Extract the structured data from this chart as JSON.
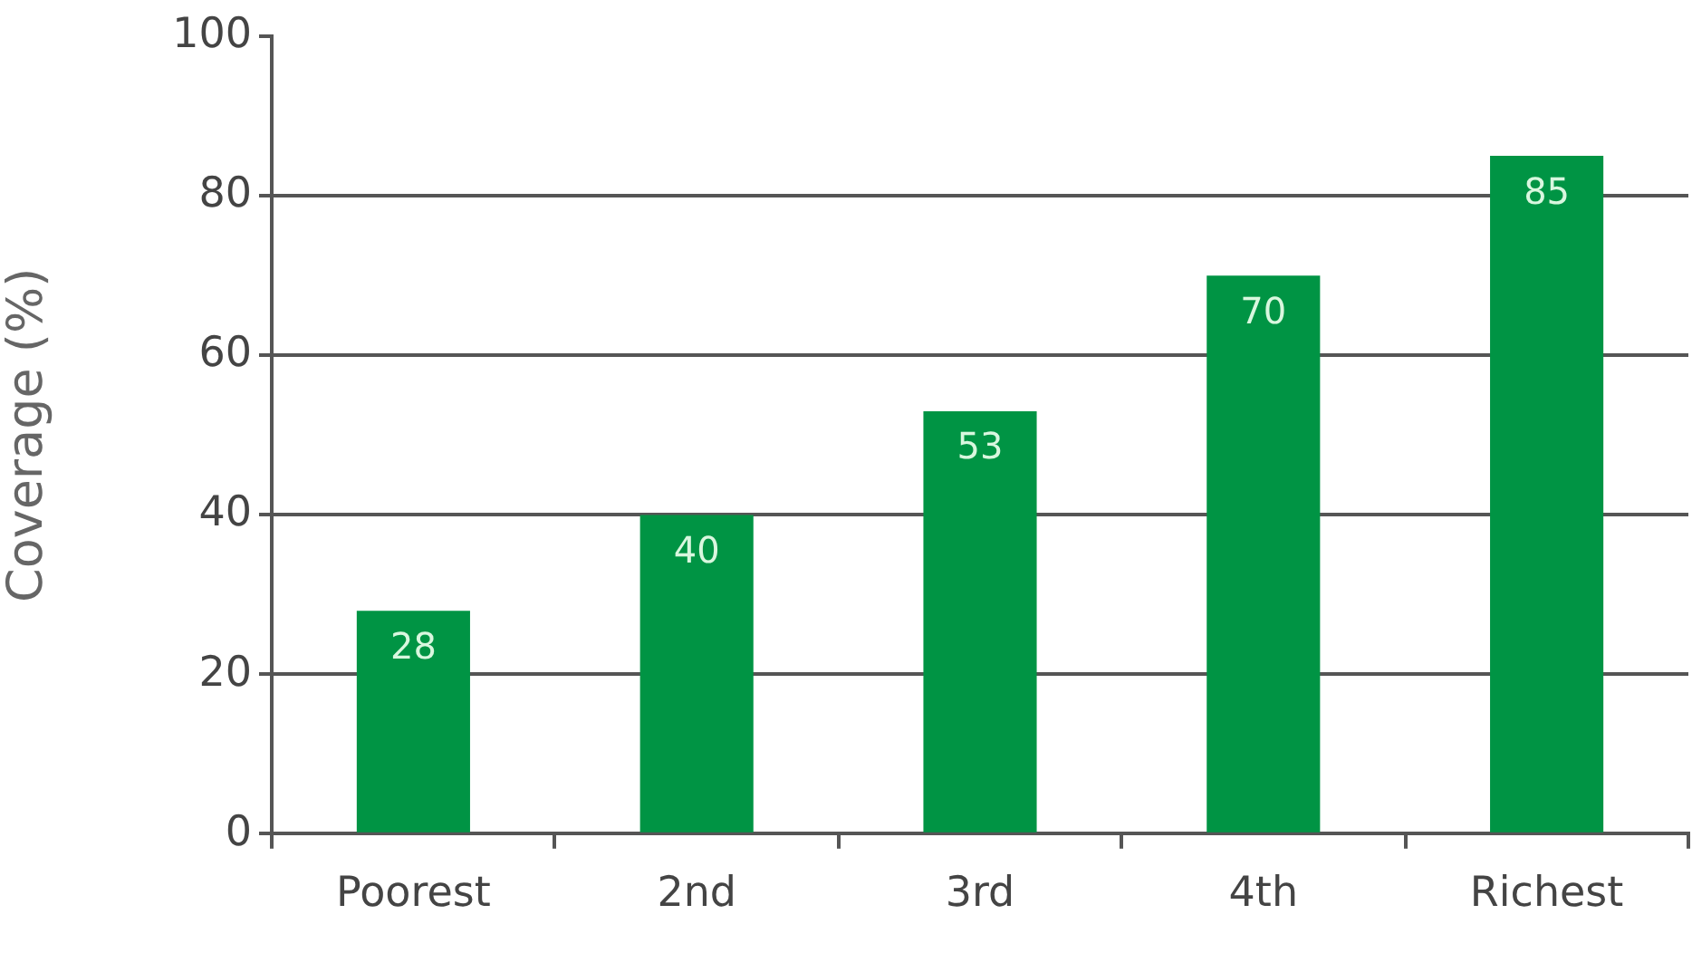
{
  "chart_data": {
    "type": "bar",
    "ylabel": "Coverage (%)",
    "categories": [
      "Poorest",
      "2nd",
      "3rd",
      "4th",
      "Richest"
    ],
    "values": [
      28,
      40,
      53,
      70,
      85
    ],
    "color": "#009444",
    "ylim": [
      0,
      100
    ],
    "yticks": [
      0,
      20,
      40,
      60,
      80,
      100
    ],
    "grid": "y",
    "data_labels": true
  }
}
